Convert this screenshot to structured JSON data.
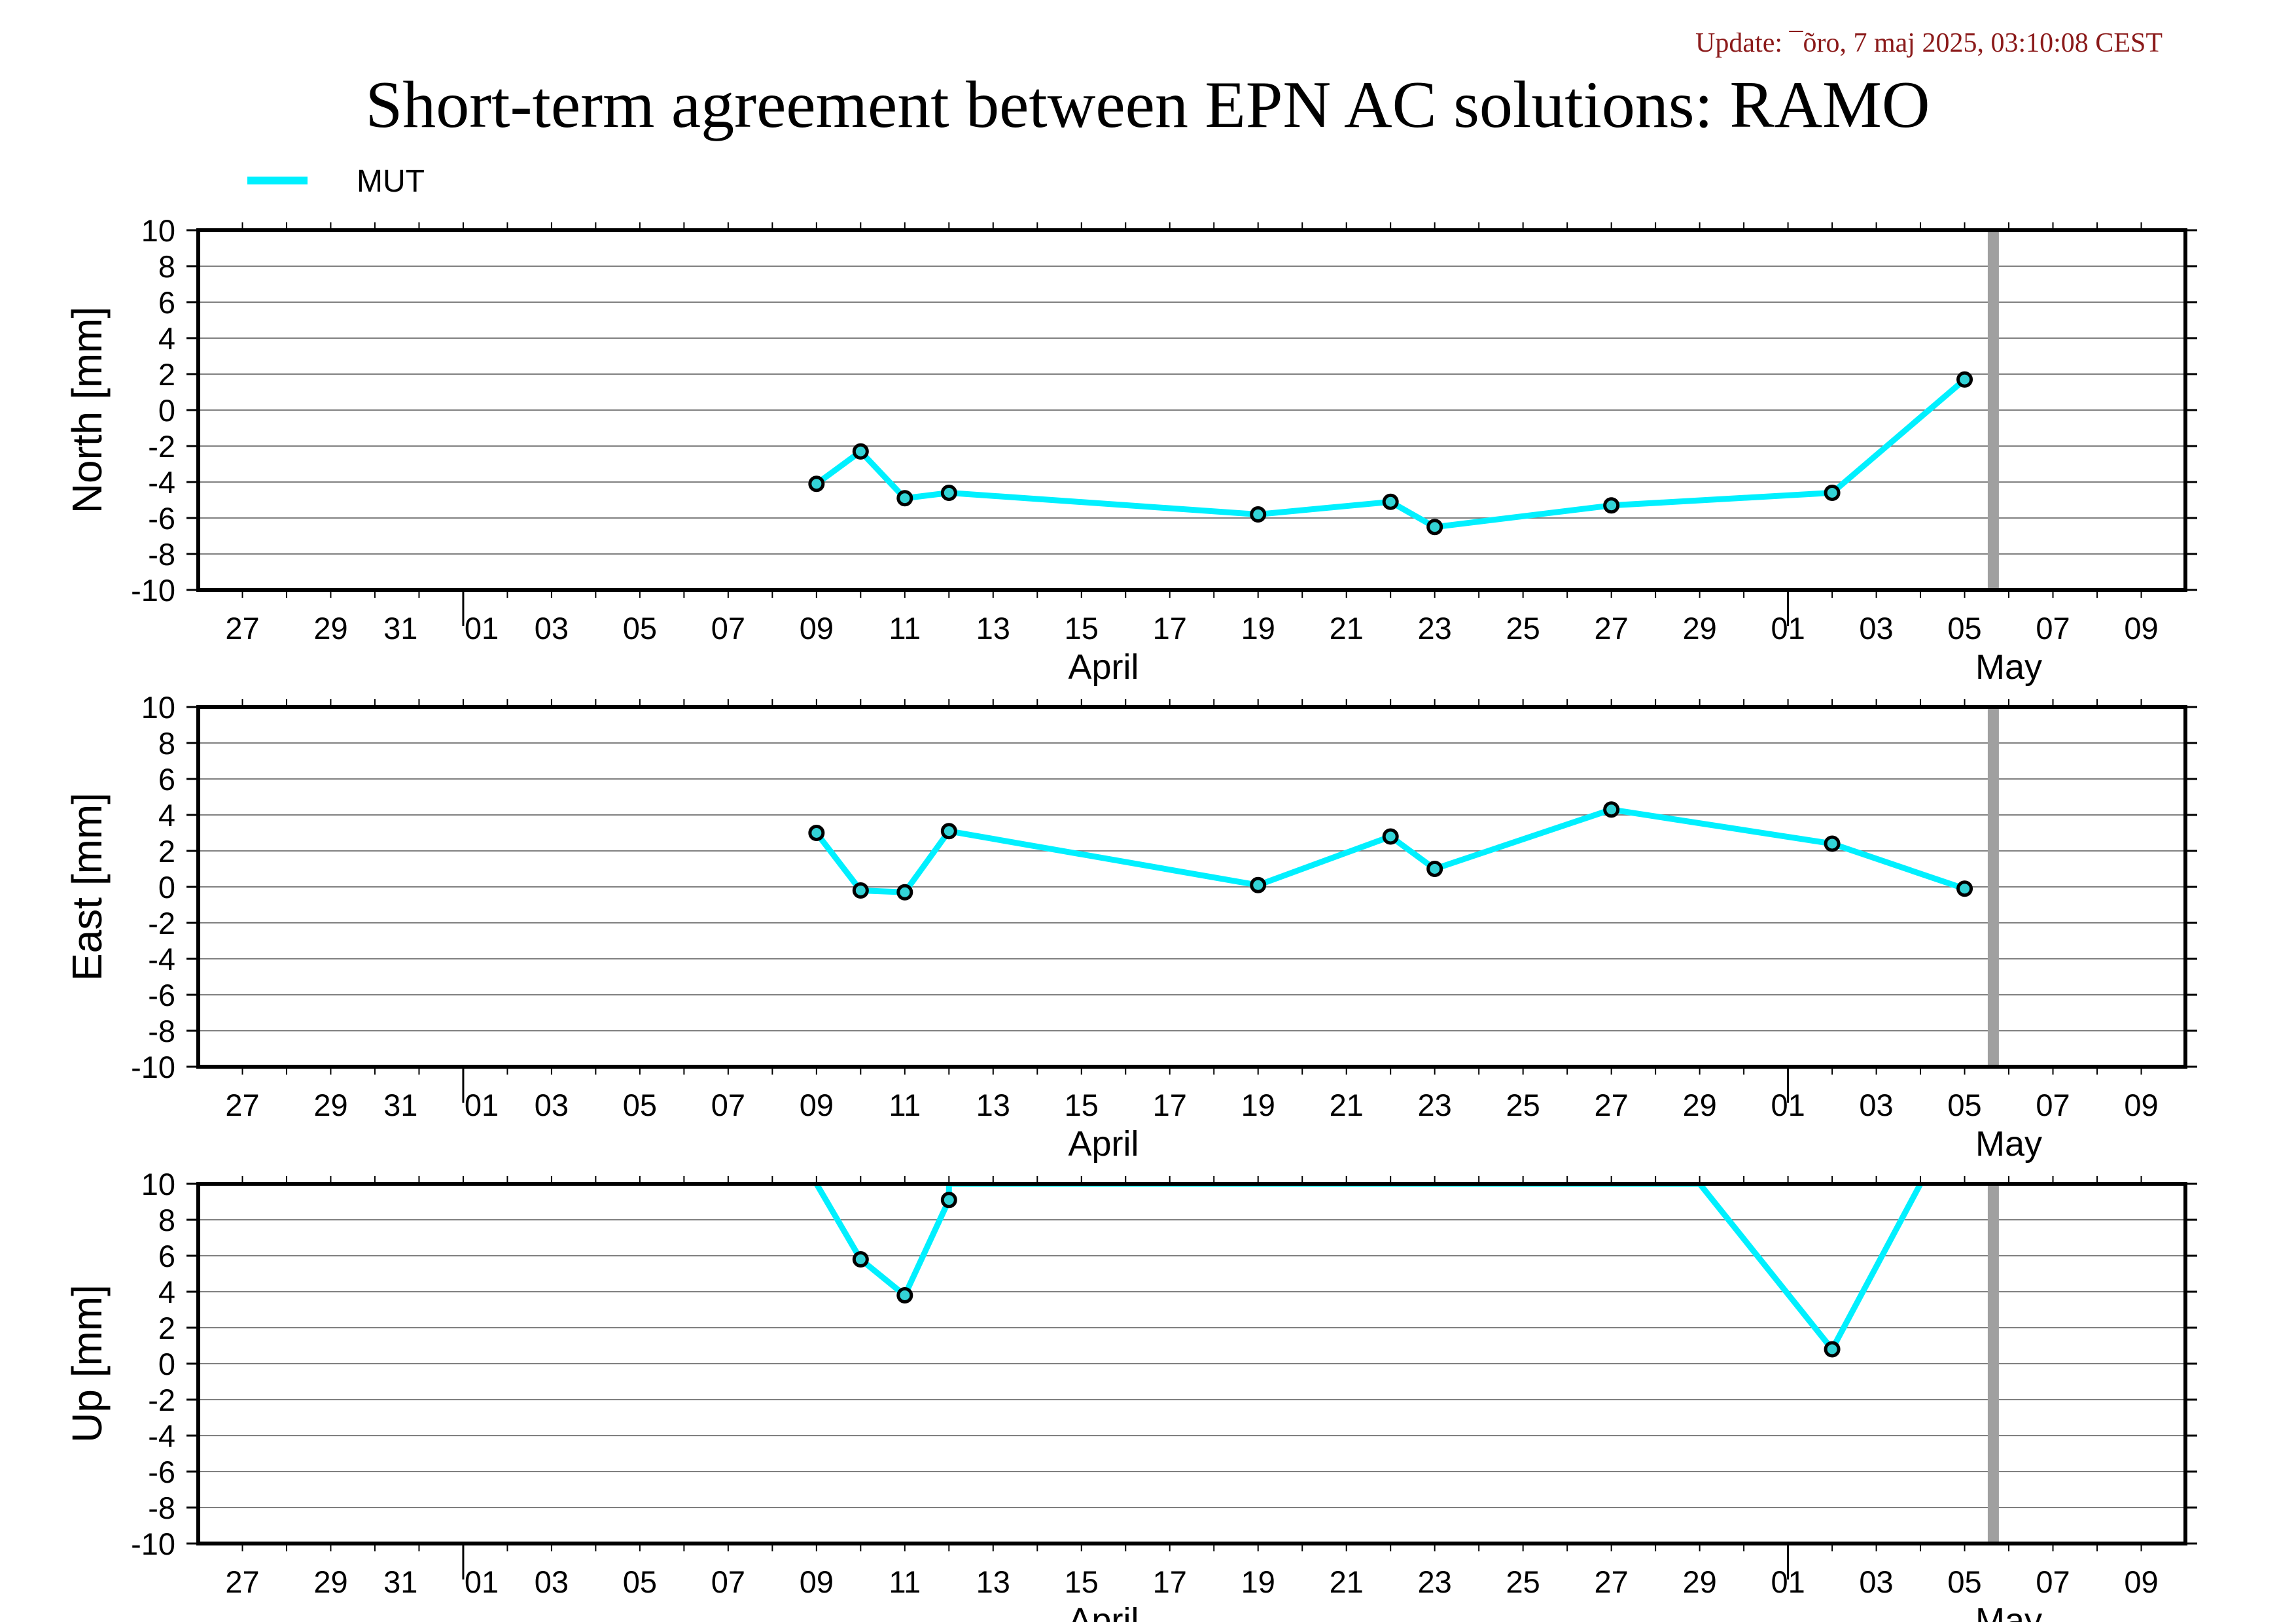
{
  "header": {
    "update": "Update: ¯õro, 7 maj 2025, 03:10:08 CEST",
    "title": "Short-term agreement between EPN AC solutions: RAMO"
  },
  "colors": {
    "series": "#00f0ff",
    "marker_fill": "#33d3d6",
    "grid": "#808080",
    "frame": "#000000",
    "today_line": "#a0a0a0",
    "update_text": "#8b1a1a"
  },
  "chart_data": [
    {
      "type": "line",
      "ylabel": "North [mm]",
      "ylim": [
        -10,
        10
      ],
      "y_ticks": [
        10,
        8,
        6,
        4,
        2,
        0,
        -2,
        -4,
        -6,
        -8,
        -10
      ],
      "x_ticks": [
        "27",
        "29",
        "31",
        "01",
        "03",
        "05",
        "07",
        "09",
        "11",
        "13",
        "15",
        "17",
        "19",
        "21",
        "23",
        "25",
        "27",
        "29",
        "01",
        "03",
        "05",
        "07",
        "09"
      ],
      "months": [
        "April",
        "May"
      ],
      "grid": "horizontal",
      "legend": "top-left",
      "series": [
        {
          "name": "MUT",
          "points": [
            {
              "x": "2025-04-09",
              "y": -4.1
            },
            {
              "x": "2025-04-10",
              "y": -2.3
            },
            {
              "x": "2025-04-11",
              "y": -4.9
            },
            {
              "x": "2025-04-12",
              "y": -4.6
            },
            {
              "x": "2025-04-19",
              "y": -5.8
            },
            {
              "x": "2025-04-22",
              "y": -5.1
            },
            {
              "x": "2025-04-23",
              "y": -6.5
            },
            {
              "x": "2025-04-27",
              "y": -5.3
            },
            {
              "x": "2025-05-02",
              "y": -4.6
            },
            {
              "x": "2025-05-05",
              "y": 1.7
            }
          ]
        }
      ]
    },
    {
      "type": "line",
      "ylabel": "East [mm]",
      "ylim": [
        -10,
        10
      ],
      "y_ticks": [
        10,
        8,
        6,
        4,
        2,
        0,
        -2,
        -4,
        -6,
        -8,
        -10
      ],
      "x_ticks": [
        "27",
        "29",
        "31",
        "01",
        "03",
        "05",
        "07",
        "09",
        "11",
        "13",
        "15",
        "17",
        "19",
        "21",
        "23",
        "25",
        "27",
        "29",
        "01",
        "03",
        "05",
        "07",
        "09"
      ],
      "months": [
        "April",
        "May"
      ],
      "grid": "horizontal",
      "series": [
        {
          "name": "MUT",
          "points": [
            {
              "x": "2025-04-09",
              "y": 3.0
            },
            {
              "x": "2025-04-10",
              "y": -0.2
            },
            {
              "x": "2025-04-11",
              "y": -0.3
            },
            {
              "x": "2025-04-12",
              "y": 3.1
            },
            {
              "x": "2025-04-19",
              "y": 0.1
            },
            {
              "x": "2025-04-22",
              "y": 2.8
            },
            {
              "x": "2025-04-23",
              "y": 1.0
            },
            {
              "x": "2025-04-27",
              "y": 4.3
            },
            {
              "x": "2025-05-02",
              "y": 2.4
            },
            {
              "x": "2025-05-05",
              "y": -0.1
            }
          ]
        }
      ]
    },
    {
      "type": "line",
      "ylabel": "Up [mm]",
      "ylim": [
        -10,
        10
      ],
      "y_ticks": [
        10,
        8,
        6,
        4,
        2,
        0,
        -2,
        -4,
        -6,
        -8,
        -10
      ],
      "x_ticks": [
        "27",
        "29",
        "31",
        "01",
        "03",
        "05",
        "07",
        "09",
        "11",
        "13",
        "15",
        "17",
        "19",
        "21",
        "23",
        "25",
        "27",
        "29",
        "01",
        "03",
        "05",
        "07",
        "09"
      ],
      "months": [
        "April",
        "May"
      ],
      "grid": "horizontal",
      "series": [
        {
          "name": "MUT",
          "points": [
            {
              "x": "2025-04-09",
              "y": 10.0,
              "clipped": true
            },
            {
              "x": "2025-04-10",
              "y": 5.8
            },
            {
              "x": "2025-04-11",
              "y": 3.8
            },
            {
              "x": "2025-04-12",
              "y": 9.1
            },
            {
              "x": "2025-04-12",
              "y": 10.0,
              "clipped": true
            },
            {
              "x": "2025-04-29",
              "y": 10.0,
              "clipped": true
            },
            {
              "x": "2025-05-02",
              "y": 0.8
            },
            {
              "x": "2025-05-04",
              "y": 10.0,
              "clipped": true
            }
          ]
        }
      ]
    }
  ],
  "today_marker": {
    "date": "2025-05-06"
  }
}
